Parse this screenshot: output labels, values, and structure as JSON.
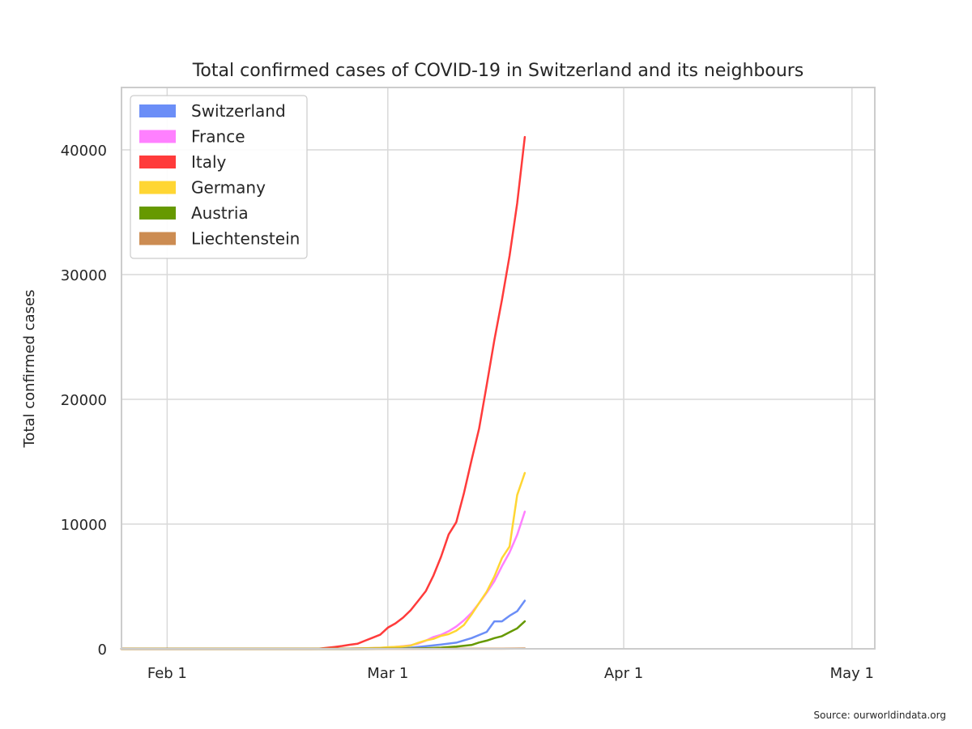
{
  "chart_data": {
    "type": "line",
    "title": "Total confirmed cases of COVID-19 in Switzerland and its neighbours",
    "xlabel": "",
    "ylabel": "Total confirmed cases",
    "x_axis": {
      "type": "date",
      "range": [
        "2020-01-26",
        "2020-05-04"
      ],
      "ticks": [
        {
          "date": "2020-02-01",
          "label": "Feb 1"
        },
        {
          "date": "2020-03-01",
          "label": "Mar 1"
        },
        {
          "date": "2020-04-01",
          "label": "Apr 1"
        },
        {
          "date": "2020-05-01",
          "label": "May 1"
        }
      ]
    },
    "y_axis": {
      "range": [
        0,
        45000
      ],
      "ticks": [
        0,
        10000,
        20000,
        30000,
        40000
      ]
    },
    "grid": true,
    "legend": "top-left",
    "series": [
      {
        "name": "Switzerland",
        "color": "#6b8ef7",
        "points": [
          [
            "2020-01-26",
            0
          ],
          [
            "2020-02-24",
            0
          ],
          [
            "2020-02-27",
            8
          ],
          [
            "2020-03-01",
            27
          ],
          [
            "2020-03-04",
            90
          ],
          [
            "2020-03-06",
            214
          ],
          [
            "2020-03-08",
            337
          ],
          [
            "2020-03-10",
            491
          ],
          [
            "2020-03-12",
            858
          ],
          [
            "2020-03-14",
            1359
          ],
          [
            "2020-03-15",
            2200
          ],
          [
            "2020-03-16",
            2200
          ],
          [
            "2020-03-17",
            2650
          ],
          [
            "2020-03-18",
            3010
          ],
          [
            "2020-03-19",
            3860
          ]
        ]
      },
      {
        "name": "France",
        "color": "#ff80ff",
        "points": [
          [
            "2020-01-26",
            0
          ],
          [
            "2020-02-25",
            14
          ],
          [
            "2020-02-28",
            57
          ],
          [
            "2020-03-01",
            100
          ],
          [
            "2020-03-03",
            212
          ],
          [
            "2020-03-04",
            285
          ],
          [
            "2020-03-05",
            423
          ],
          [
            "2020-03-06",
            653
          ],
          [
            "2020-03-07",
            949
          ],
          [
            "2020-03-08",
            1126
          ],
          [
            "2020-03-09",
            1412
          ],
          [
            "2020-03-10",
            1784
          ],
          [
            "2020-03-11",
            2281
          ],
          [
            "2020-03-12",
            2876
          ],
          [
            "2020-03-13",
            3661
          ],
          [
            "2020-03-14",
            4499
          ],
          [
            "2020-03-15",
            5423
          ],
          [
            "2020-03-16",
            6633
          ],
          [
            "2020-03-17",
            7730
          ],
          [
            "2020-03-18",
            9134
          ],
          [
            "2020-03-19",
            10995
          ]
        ]
      },
      {
        "name": "Italy",
        "color": "#ff3b3b",
        "points": [
          [
            "2020-01-26",
            0
          ],
          [
            "2020-01-30",
            2
          ],
          [
            "2020-02-20",
            3
          ],
          [
            "2020-02-21",
            20
          ],
          [
            "2020-02-22",
            79
          ],
          [
            "2020-02-23",
            150
          ],
          [
            "2020-02-24",
            229
          ],
          [
            "2020-02-25",
            322
          ],
          [
            "2020-02-26",
            400
          ],
          [
            "2020-02-27",
            650
          ],
          [
            "2020-02-28",
            888
          ],
          [
            "2020-02-29",
            1128
          ],
          [
            "2020-03-01",
            1694
          ],
          [
            "2020-03-02",
            2036
          ],
          [
            "2020-03-03",
            2502
          ],
          [
            "2020-03-04",
            3089
          ],
          [
            "2020-03-05",
            3858
          ],
          [
            "2020-03-06",
            4636
          ],
          [
            "2020-03-07",
            5883
          ],
          [
            "2020-03-08",
            7375
          ],
          [
            "2020-03-09",
            9172
          ],
          [
            "2020-03-10",
            10149
          ],
          [
            "2020-03-11",
            12462
          ],
          [
            "2020-03-12",
            15113
          ],
          [
            "2020-03-13",
            17660
          ],
          [
            "2020-03-14",
            21157
          ],
          [
            "2020-03-15",
            24747
          ],
          [
            "2020-03-16",
            27980
          ],
          [
            "2020-03-17",
            31506
          ],
          [
            "2020-03-18",
            35713
          ],
          [
            "2020-03-19",
            41035
          ]
        ]
      },
      {
        "name": "Germany",
        "color": "#ffd633",
        "points": [
          [
            "2020-01-26",
            0
          ],
          [
            "2020-01-28",
            4
          ],
          [
            "2020-02-25",
            16
          ],
          [
            "2020-02-27",
            46
          ],
          [
            "2020-02-29",
            79
          ],
          [
            "2020-03-01",
            130
          ],
          [
            "2020-03-02",
            159
          ],
          [
            "2020-03-03",
            196
          ],
          [
            "2020-03-04",
            262
          ],
          [
            "2020-03-05",
            482
          ],
          [
            "2020-03-06",
            670
          ],
          [
            "2020-03-07",
            799
          ],
          [
            "2020-03-08",
            1040
          ],
          [
            "2020-03-09",
            1176
          ],
          [
            "2020-03-10",
            1457
          ],
          [
            "2020-03-11",
            1908
          ],
          [
            "2020-03-12",
            2745
          ],
          [
            "2020-03-13",
            3675
          ],
          [
            "2020-03-14",
            4585
          ],
          [
            "2020-03-15",
            5795
          ],
          [
            "2020-03-16",
            7272
          ],
          [
            "2020-03-17",
            8200
          ],
          [
            "2020-03-18",
            12327
          ],
          [
            "2020-03-19",
            14100
          ]
        ]
      },
      {
        "name": "Austria",
        "color": "#669900",
        "points": [
          [
            "2020-01-26",
            0
          ],
          [
            "2020-02-25",
            2
          ],
          [
            "2020-03-01",
            10
          ],
          [
            "2020-03-04",
            29
          ],
          [
            "2020-03-06",
            55
          ],
          [
            "2020-03-08",
            99
          ],
          [
            "2020-03-10",
            182
          ],
          [
            "2020-03-11",
            246
          ],
          [
            "2020-03-12",
            302
          ],
          [
            "2020-03-13",
            504
          ],
          [
            "2020-03-14",
            655
          ],
          [
            "2020-03-15",
            860
          ],
          [
            "2020-03-16",
            1016
          ],
          [
            "2020-03-17",
            1332
          ],
          [
            "2020-03-18",
            1646
          ],
          [
            "2020-03-19",
            2200
          ]
        ]
      },
      {
        "name": "Liechtenstein",
        "color": "#cc8c52",
        "points": [
          [
            "2020-01-26",
            0
          ],
          [
            "2020-03-03",
            1
          ],
          [
            "2020-03-10",
            4
          ],
          [
            "2020-03-14",
            4
          ],
          [
            "2020-03-16",
            7
          ],
          [
            "2020-03-19",
            28
          ]
        ]
      }
    ],
    "annotations": [
      "Source: ourworldindata.org"
    ]
  }
}
